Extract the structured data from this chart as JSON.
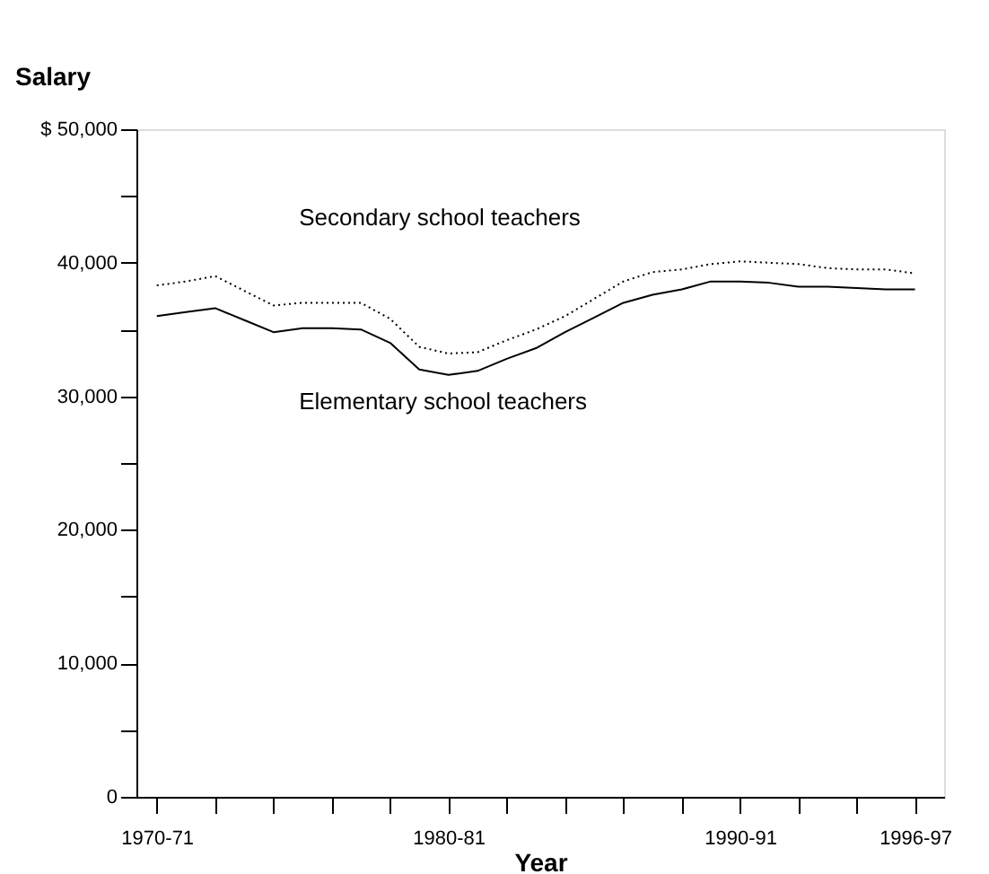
{
  "chart_data": {
    "type": "line",
    "xlabel": "Year",
    "ylabel": "Salary",
    "categories": [
      "1970-71",
      null,
      null,
      null,
      null,
      null,
      null,
      null,
      null,
      null,
      "1980-81",
      null,
      null,
      null,
      null,
      null,
      null,
      null,
      null,
      null,
      "1990-91",
      null,
      null,
      null,
      null,
      null,
      "1996-97"
    ],
    "series": [
      {
        "name": "Secondary school teachers",
        "color": "#000000",
        "line_style": "dotted",
        "values": [
          38300,
          38600,
          39000,
          37900,
          36800,
          37000,
          37000,
          37000,
          35800,
          33700,
          33200,
          33300,
          34200,
          35000,
          36000,
          37300,
          38600,
          39300,
          39500,
          39900,
          40100,
          40000,
          39900,
          39600,
          39500,
          39500,
          39200
        ]
      },
      {
        "name": "Elementary school teachers",
        "color": "#000000",
        "line_style": "solid",
        "values": [
          36000,
          36300,
          36600,
          35700,
          34800,
          35100,
          35100,
          35000,
          34000,
          32000,
          31600,
          31900,
          32800,
          33600,
          34800,
          35900,
          37000,
          37600,
          38000,
          38600,
          38600,
          38500,
          38200,
          38200,
          38100,
          38000,
          38000
        ]
      }
    ],
    "ylim": [
      0,
      50000
    ],
    "yticks": [
      0,
      {
        "value": 5000,
        "label": null
      },
      {
        "value": 10000,
        "label": "10,000"
      },
      {
        "value": 15000,
        "label": null
      },
      {
        "value": 20000,
        "label": "20,000"
      },
      {
        "value": 25000,
        "label": null
      },
      {
        "value": 30000,
        "label": "30,000"
      },
      {
        "value": 35000,
        "label": null
      },
      {
        "value": 40000,
        "label": "40,000"
      },
      {
        "value": 45000,
        "label": null
      },
      {
        "value": 50000,
        "label": "$ 50,000"
      }
    ],
    "grid": false,
    "legend": false,
    "marker": "none"
  }
}
